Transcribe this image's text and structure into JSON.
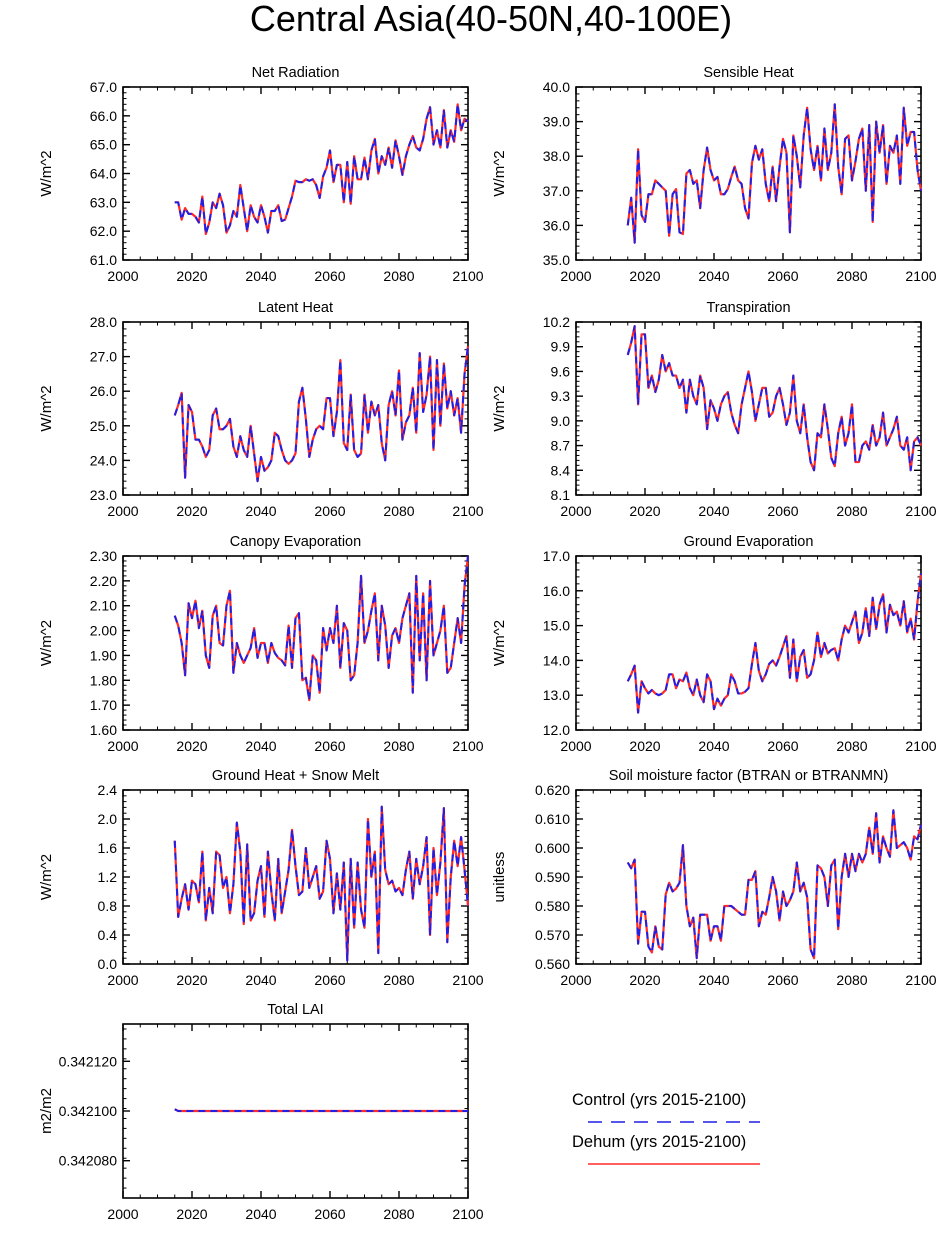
{
  "title": "Central Asia(40-50N,40-100E)",
  "colors": {
    "control": "#1f1fe6",
    "dehum": "#ff2a2a",
    "axis": "#000000"
  },
  "legend": {
    "items": [
      {
        "label": "Control (yrs 2015-2100)",
        "style": "dashed",
        "color": "#1f1fe6"
      },
      {
        "label": "Dehum (yrs 2015-2100)",
        "style": "solid",
        "color": "#ff2a2a"
      }
    ]
  },
  "chart_data": [
    {
      "id": "net-radiation",
      "type": "line",
      "title": "Net Radiation",
      "xlabel": "",
      "ylabel": "W/m^2",
      "xlim": [
        2000,
        2100
      ],
      "ylim": [
        61.0,
        67.0
      ],
      "xticks": [
        2000,
        2020,
        2040,
        2060,
        2080,
        2100
      ],
      "yticks": [
        61.0,
        62.0,
        63.0,
        64.0,
        65.0,
        66.0,
        67.0
      ],
      "yticklabels": [
        "61.0",
        "62.0",
        "63.0",
        "64.0",
        "65.0",
        "66.0",
        "67.0"
      ],
      "x_start": 2015,
      "values": [
        63.0,
        63.0,
        62.4,
        62.8,
        62.6,
        62.6,
        62.5,
        62.3,
        63.2,
        61.9,
        62.3,
        63.0,
        62.8,
        63.3,
        62.9,
        61.95,
        62.2,
        62.7,
        62.5,
        63.6,
        62.8,
        62.0,
        62.9,
        62.5,
        62.3,
        62.9,
        62.5,
        61.95,
        62.7,
        62.7,
        62.9,
        62.35,
        62.4,
        62.8,
        63.2,
        63.75,
        63.7,
        63.7,
        63.8,
        63.75,
        63.8,
        63.6,
        63.15,
        63.9,
        64.2,
        64.8,
        63.7,
        64.3,
        64.3,
        63.0,
        64.4,
        62.95,
        64.6,
        63.8,
        63.8,
        64.55,
        63.8,
        64.8,
        65.2,
        64.0,
        64.6,
        64.3,
        64.9,
        64.2,
        65.15,
        64.6,
        63.95,
        64.6,
        65.0,
        65.3,
        64.9,
        64.8,
        65.2,
        65.9,
        66.3,
        65.0,
        65.5,
        64.9,
        66.2,
        64.9,
        65.5,
        65.1,
        66.4,
        65.5,
        65.9,
        65.8
      ]
    },
    {
      "id": "sensible-heat",
      "type": "line",
      "title": "Sensible Heat",
      "xlabel": "",
      "ylabel": "W/m^2",
      "xlim": [
        2000,
        2100
      ],
      "ylim": [
        35.0,
        40.0
      ],
      "xticks": [
        2000,
        2020,
        2040,
        2060,
        2080,
        2100
      ],
      "yticks": [
        35.0,
        36.0,
        37.0,
        38.0,
        39.0,
        40.0
      ],
      "yticklabels": [
        "35.0",
        "36.0",
        "37.0",
        "38.0",
        "39.0",
        "40.0"
      ],
      "x_start": 2015,
      "values": [
        36.0,
        36.8,
        35.5,
        38.2,
        36.3,
        36.1,
        36.9,
        36.9,
        37.3,
        37.2,
        37.1,
        37.0,
        35.7,
        36.9,
        37.05,
        35.8,
        35.75,
        37.5,
        37.6,
        37.2,
        37.3,
        36.5,
        37.6,
        38.25,
        37.6,
        37.3,
        37.4,
        36.9,
        36.9,
        37.05,
        37.4,
        37.7,
        37.3,
        37.2,
        36.5,
        36.2,
        37.8,
        38.3,
        37.9,
        38.2,
        37.2,
        36.7,
        37.7,
        36.7,
        37.7,
        38.5,
        38.1,
        35.8,
        38.6,
        38.0,
        37.1,
        38.6,
        39.4,
        38.2,
        37.6,
        38.3,
        37.3,
        38.8,
        37.6,
        38.1,
        39.5,
        37.7,
        36.9,
        38.5,
        38.6,
        37.3,
        37.85,
        38.5,
        38.8,
        37.0,
        38.9,
        36.1,
        39.0,
        38.1,
        38.9,
        37.2,
        38.3,
        38.1,
        38.6,
        37.2,
        39.4,
        38.3,
        38.7,
        38.7,
        37.6,
        37.0
      ]
    },
    {
      "id": "latent-heat",
      "type": "line",
      "title": "Latent Heat",
      "xlabel": "",
      "ylabel": "W/m^2",
      "xlim": [
        2000,
        2100
      ],
      "ylim": [
        23.0,
        28.0
      ],
      "xticks": [
        2000,
        2020,
        2040,
        2060,
        2080,
        2100
      ],
      "yticks": [
        23.0,
        24.0,
        25.0,
        26.0,
        27.0,
        28.0
      ],
      "yticklabels": [
        "23.0",
        "24.0",
        "25.0",
        "26.0",
        "27.0",
        "28.0"
      ],
      "x_start": 2015,
      "values": [
        25.3,
        25.6,
        25.95,
        23.5,
        25.6,
        25.4,
        24.6,
        24.6,
        24.4,
        24.1,
        24.3,
        25.3,
        25.5,
        24.9,
        24.9,
        25.0,
        25.2,
        24.4,
        24.1,
        24.7,
        24.3,
        24.1,
        25.0,
        24.2,
        23.4,
        24.1,
        23.7,
        23.8,
        24.0,
        24.8,
        24.7,
        24.3,
        24.0,
        23.9,
        24.0,
        24.2,
        25.7,
        26.1,
        25.2,
        24.1,
        24.6,
        24.9,
        25.0,
        24.9,
        25.8,
        25.8,
        24.7,
        25.4,
        26.9,
        24.5,
        24.3,
        25.9,
        24.3,
        24.1,
        24.2,
        25.9,
        24.8,
        25.7,
        25.3,
        25.6,
        24.5,
        24.0,
        25.6,
        26.0,
        25.3,
        26.6,
        24.6,
        25.1,
        25.3,
        26.1,
        24.8,
        27.1,
        25.4,
        25.9,
        27.0,
        24.3,
        26.9,
        25.0,
        26.8,
        25.5,
        26.0,
        25.3,
        25.8,
        24.8,
        26.5,
        27.3
      ]
    },
    {
      "id": "transpiration",
      "type": "line",
      "title": "Transpiration",
      "xlabel": "",
      "ylabel": "W/m^2",
      "xlim": [
        2000,
        2100
      ],
      "ylim": [
        8.1,
        10.2
      ],
      "xticks": [
        2000,
        2020,
        2040,
        2060,
        2080,
        2100
      ],
      "yticks": [
        8.1,
        8.4,
        8.7,
        9.0,
        9.3,
        9.6,
        9.9,
        10.2
      ],
      "yticklabels": [
        "8.1",
        "8.4",
        "8.7",
        "9.0",
        "9.3",
        "9.6",
        "9.9",
        "10.2"
      ],
      "x_start": 2015,
      "values": [
        9.8,
        9.95,
        10.15,
        9.2,
        10.05,
        10.05,
        9.4,
        9.55,
        9.35,
        9.5,
        9.8,
        9.6,
        9.7,
        9.55,
        9.55,
        9.4,
        9.5,
        9.1,
        9.5,
        9.3,
        9.2,
        9.55,
        9.4,
        8.9,
        9.25,
        9.15,
        9.0,
        9.2,
        9.3,
        9.35,
        9.1,
        8.95,
        8.85,
        9.2,
        9.4,
        9.6,
        9.35,
        9.0,
        9.2,
        9.4,
        9.4,
        9.05,
        9.1,
        9.3,
        9.4,
        9.2,
        8.95,
        9.1,
        9.55,
        9.0,
        8.85,
        9.2,
        8.8,
        8.5,
        8.4,
        8.85,
        8.8,
        9.2,
        8.9,
        8.55,
        8.45,
        8.85,
        9.05,
        8.7,
        8.85,
        9.2,
        8.5,
        8.5,
        8.7,
        8.75,
        8.65,
        8.95,
        8.7,
        8.8,
        9.1,
        8.7,
        8.8,
        8.9,
        9.05,
        8.7,
        8.65,
        8.8,
        8.4,
        8.75,
        8.8,
        8.7
      ]
    },
    {
      "id": "canopy-evaporation",
      "type": "line",
      "title": "Canopy Evaporation",
      "xlabel": "",
      "ylabel": "W/m^2",
      "xlim": [
        2000,
        2100
      ],
      "ylim": [
        1.6,
        2.3
      ],
      "xticks": [
        2000,
        2020,
        2040,
        2060,
        2080,
        2100
      ],
      "yticks": [
        1.6,
        1.7,
        1.8,
        1.9,
        2.0,
        2.1,
        2.2,
        2.3
      ],
      "yticklabels": [
        "1.60",
        "1.70",
        "1.80",
        "1.90",
        "2.00",
        "2.10",
        "2.20",
        "2.30"
      ],
      "x_start": 2015,
      "values": [
        2.06,
        2.02,
        1.95,
        1.82,
        2.11,
        2.05,
        2.12,
        2.01,
        2.08,
        1.9,
        1.85,
        2.06,
        2.1,
        1.95,
        1.94,
        2.1,
        2.16,
        1.83,
        1.95,
        1.9,
        1.87,
        1.9,
        1.93,
        2.01,
        1.89,
        1.95,
        1.95,
        1.87,
        1.95,
        1.91,
        1.89,
        1.88,
        1.86,
        2.02,
        1.85,
        2.05,
        2.07,
        1.8,
        1.81,
        1.72,
        1.9,
        1.88,
        1.75,
        2.01,
        1.92,
        2.01,
        1.95,
        2.1,
        1.85,
        2.03,
        2.0,
        1.8,
        1.82,
        1.95,
        2.22,
        1.95,
        2.0,
        2.08,
        2.15,
        1.88,
        2.1,
        2.02,
        1.85,
        1.98,
        2.01,
        1.95,
        2.05,
        2.1,
        2.15,
        1.75,
        2.22,
        1.88,
        2.15,
        1.8,
        2.2,
        1.9,
        1.95,
        2.0,
        2.1,
        1.83,
        1.85,
        1.95,
        2.05,
        1.95,
        2.18,
        2.3
      ]
    },
    {
      "id": "ground-evaporation",
      "type": "line",
      "title": "Ground Evaporation",
      "xlabel": "",
      "ylabel": "W/m^2",
      "xlim": [
        2000,
        2100
      ],
      "ylim": [
        12.0,
        17.0
      ],
      "xticks": [
        2000,
        2020,
        2040,
        2060,
        2080,
        2100
      ],
      "yticks": [
        12.0,
        13.0,
        14.0,
        15.0,
        16.0,
        17.0
      ],
      "yticklabels": [
        "12.0",
        "13.0",
        "14.0",
        "15.0",
        "16.0",
        "17.0"
      ],
      "x_start": 2015,
      "values": [
        13.4,
        13.6,
        13.85,
        12.5,
        13.4,
        13.2,
        13.05,
        13.15,
        13.05,
        13.0,
        13.05,
        13.15,
        13.6,
        13.6,
        13.2,
        13.45,
        13.4,
        13.65,
        13.2,
        13.0,
        13.45,
        13.0,
        12.8,
        13.6,
        13.4,
        12.6,
        12.9,
        12.7,
        12.9,
        13.0,
        13.6,
        13.4,
        13.05,
        13.05,
        13.1,
        13.2,
        13.9,
        14.5,
        13.7,
        13.4,
        13.6,
        13.9,
        14.0,
        13.85,
        14.1,
        14.4,
        14.7,
        13.5,
        14.6,
        13.4,
        14.1,
        14.3,
        13.5,
        13.6,
        14.0,
        14.8,
        14.1,
        14.5,
        14.2,
        14.3,
        14.35,
        14.0,
        14.6,
        15.0,
        14.8,
        15.1,
        15.4,
        14.5,
        14.8,
        15.5,
        14.7,
        15.8,
        14.9,
        15.6,
        15.9,
        14.8,
        15.6,
        15.3,
        15.4,
        15.0,
        15.7,
        14.8,
        15.2,
        14.6,
        15.7,
        16.5
      ]
    },
    {
      "id": "ground-heat-snow-melt",
      "type": "line",
      "title": "Ground Heat + Snow Melt",
      "xlabel": "",
      "ylabel": "W/m^2",
      "xlim": [
        2000,
        2100
      ],
      "ylim": [
        0.0,
        2.4
      ],
      "xticks": [
        2000,
        2020,
        2040,
        2060,
        2080,
        2100
      ],
      "yticks": [
        0.0,
        0.4,
        0.8,
        1.2,
        1.6,
        2.0,
        2.4
      ],
      "yticklabels": [
        "0.0",
        "0.4",
        "0.8",
        "1.2",
        "1.6",
        "2.0",
        "2.4"
      ],
      "x_start": 2015,
      "values": [
        1.7,
        0.65,
        0.9,
        1.1,
        0.75,
        1.15,
        1.1,
        0.85,
        1.55,
        0.6,
        1.05,
        0.7,
        1.55,
        1.5,
        1.05,
        1.2,
        0.7,
        1.1,
        1.95,
        1.55,
        0.55,
        1.65,
        0.6,
        0.7,
        1.15,
        1.35,
        0.65,
        1.55,
        1.0,
        0.6,
        1.45,
        0.7,
        1.0,
        1.3,
        1.85,
        1.35,
        0.95,
        1.0,
        1.6,
        1.05,
        1.2,
        1.35,
        0.9,
        1.0,
        1.7,
        1.45,
        0.7,
        1.25,
        0.75,
        1.4,
        0.05,
        1.45,
        0.5,
        1.4,
        0.75,
        0.5,
        2.0,
        1.2,
        1.55,
        0.15,
        2.17,
        1.3,
        1.1,
        1.15,
        1.0,
        1.05,
        0.95,
        1.3,
        1.55,
        0.9,
        1.45,
        1.1,
        1.35,
        1.75,
        0.4,
        1.6,
        0.95,
        1.4,
        2.15,
        0.3,
        1.2,
        1.7,
        1.35,
        1.75,
        1.3,
        0.8
      ]
    },
    {
      "id": "soil-moisture-factor",
      "type": "line",
      "title": "Soil moisture factor (BTRAN or BTRANMN)",
      "xlabel": "",
      "ylabel": "unitless",
      "xlim": [
        2000,
        2100
      ],
      "ylim": [
        0.56,
        0.62
      ],
      "xticks": [
        2000,
        2020,
        2040,
        2060,
        2080,
        2100
      ],
      "yticks": [
        0.56,
        0.57,
        0.58,
        0.59,
        0.6,
        0.61,
        0.62
      ],
      "yticklabels": [
        "0.560",
        "0.570",
        "0.580",
        "0.590",
        "0.600",
        "0.610",
        "0.620"
      ],
      "x_start": 2015,
      "values": [
        0.595,
        0.593,
        0.596,
        0.567,
        0.578,
        0.578,
        0.566,
        0.564,
        0.573,
        0.566,
        0.565,
        0.584,
        0.588,
        0.585,
        0.586,
        0.588,
        0.601,
        0.58,
        0.573,
        0.576,
        0.562,
        0.577,
        0.577,
        0.577,
        0.568,
        0.573,
        0.573,
        0.568,
        0.58,
        0.58,
        0.58,
        0.579,
        0.578,
        0.577,
        0.577,
        0.589,
        0.589,
        0.592,
        0.573,
        0.578,
        0.577,
        0.583,
        0.59,
        0.585,
        0.575,
        0.585,
        0.58,
        0.582,
        0.585,
        0.595,
        0.585,
        0.588,
        0.583,
        0.565,
        0.562,
        0.594,
        0.593,
        0.59,
        0.58,
        0.594,
        0.596,
        0.572,
        0.59,
        0.598,
        0.59,
        0.598,
        0.592,
        0.598,
        0.595,
        0.598,
        0.607,
        0.598,
        0.612,
        0.595,
        0.604,
        0.6,
        0.597,
        0.613,
        0.6,
        0.601,
        0.602,
        0.6,
        0.596,
        0.604,
        0.603,
        0.608
      ]
    },
    {
      "id": "total-lai",
      "type": "line",
      "title": "Total LAI",
      "xlabel": "",
      "ylabel": "m2/m2",
      "xlim": [
        2000,
        2100
      ],
      "ylim": [
        0.342065,
        0.342135
      ],
      "xticks": [
        2000,
        2020,
        2040,
        2060,
        2080,
        2100
      ],
      "yticks": [
        0.34208,
        0.3421,
        0.34212
      ],
      "yticklabels": [
        "0.342080",
        "0.342100",
        "0.342120"
      ],
      "x_start": 2015,
      "values": [
        0.3421007,
        0.3421,
        0.3421,
        0.3421,
        0.3421,
        0.3421,
        0.3421,
        0.3421,
        0.3421,
        0.3421,
        0.3421,
        0.3421,
        0.3421,
        0.3421,
        0.3421,
        0.3421,
        0.3421,
        0.3421,
        0.3421,
        0.3421,
        0.3421,
        0.3421,
        0.3421,
        0.3421,
        0.3421,
        0.3421,
        0.3421,
        0.3421,
        0.3421,
        0.3421,
        0.3421,
        0.3421,
        0.3421,
        0.3421,
        0.3421,
        0.3421,
        0.3421,
        0.3421,
        0.3421,
        0.3421,
        0.3421,
        0.3421,
        0.3421,
        0.3421,
        0.3421,
        0.3421,
        0.3421,
        0.3421,
        0.3421,
        0.3421,
        0.3421,
        0.3421,
        0.3421,
        0.3421,
        0.3421,
        0.3421,
        0.3421,
        0.3421,
        0.3421,
        0.3421,
        0.3421,
        0.3421,
        0.3421,
        0.3421,
        0.3421,
        0.3421,
        0.3421,
        0.3421,
        0.3421,
        0.3421,
        0.3421,
        0.3421,
        0.3421,
        0.3421,
        0.3421,
        0.3421,
        0.3421,
        0.3421,
        0.3421,
        0.3421,
        0.3421,
        0.3421,
        0.3421,
        0.3421,
        0.3421,
        0.3421
      ]
    }
  ]
}
